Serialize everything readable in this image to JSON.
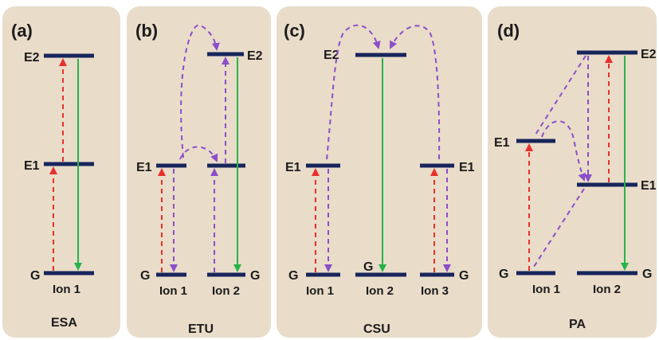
{
  "colors": {
    "panel_background": "#e9dcc9",
    "energy_level": "#17255c",
    "absorption_arrow": "#e8302c",
    "energy_transfer_arrow": "#8a4fc9",
    "emission_arrow": "#27b34a"
  },
  "panels": [
    {
      "tag": "(a)",
      "mechanism": "ESA",
      "levels": {
        "e2": "E2",
        "e1": "E1",
        "g": "G"
      },
      "ions": [
        "Ion 1"
      ]
    },
    {
      "tag": "(b)",
      "mechanism": "ETU",
      "levels": {
        "e1_left": "E1",
        "g_left": "G",
        "e2_right": "E2",
        "g_right": "G"
      },
      "ions": [
        "Ion 1",
        "Ion 2"
      ]
    },
    {
      "tag": "(c)",
      "mechanism": "CSU",
      "levels": {
        "e2": "E2",
        "e1_left": "E1",
        "g_left": "G",
        "g_mid": "G",
        "e1_right": "E1",
        "g_right": "G"
      },
      "ions": [
        "Ion 1",
        "Ion 2",
        "Ion 3"
      ]
    },
    {
      "tag": "(d)",
      "mechanism": "PA",
      "levels": {
        "e1_left": "E1",
        "g_left": "G",
        "e2_right": "E2",
        "e1_right": "E1",
        "g_right": "G"
      },
      "ions": [
        "Ion 1",
        "Ion 2"
      ]
    }
  ]
}
